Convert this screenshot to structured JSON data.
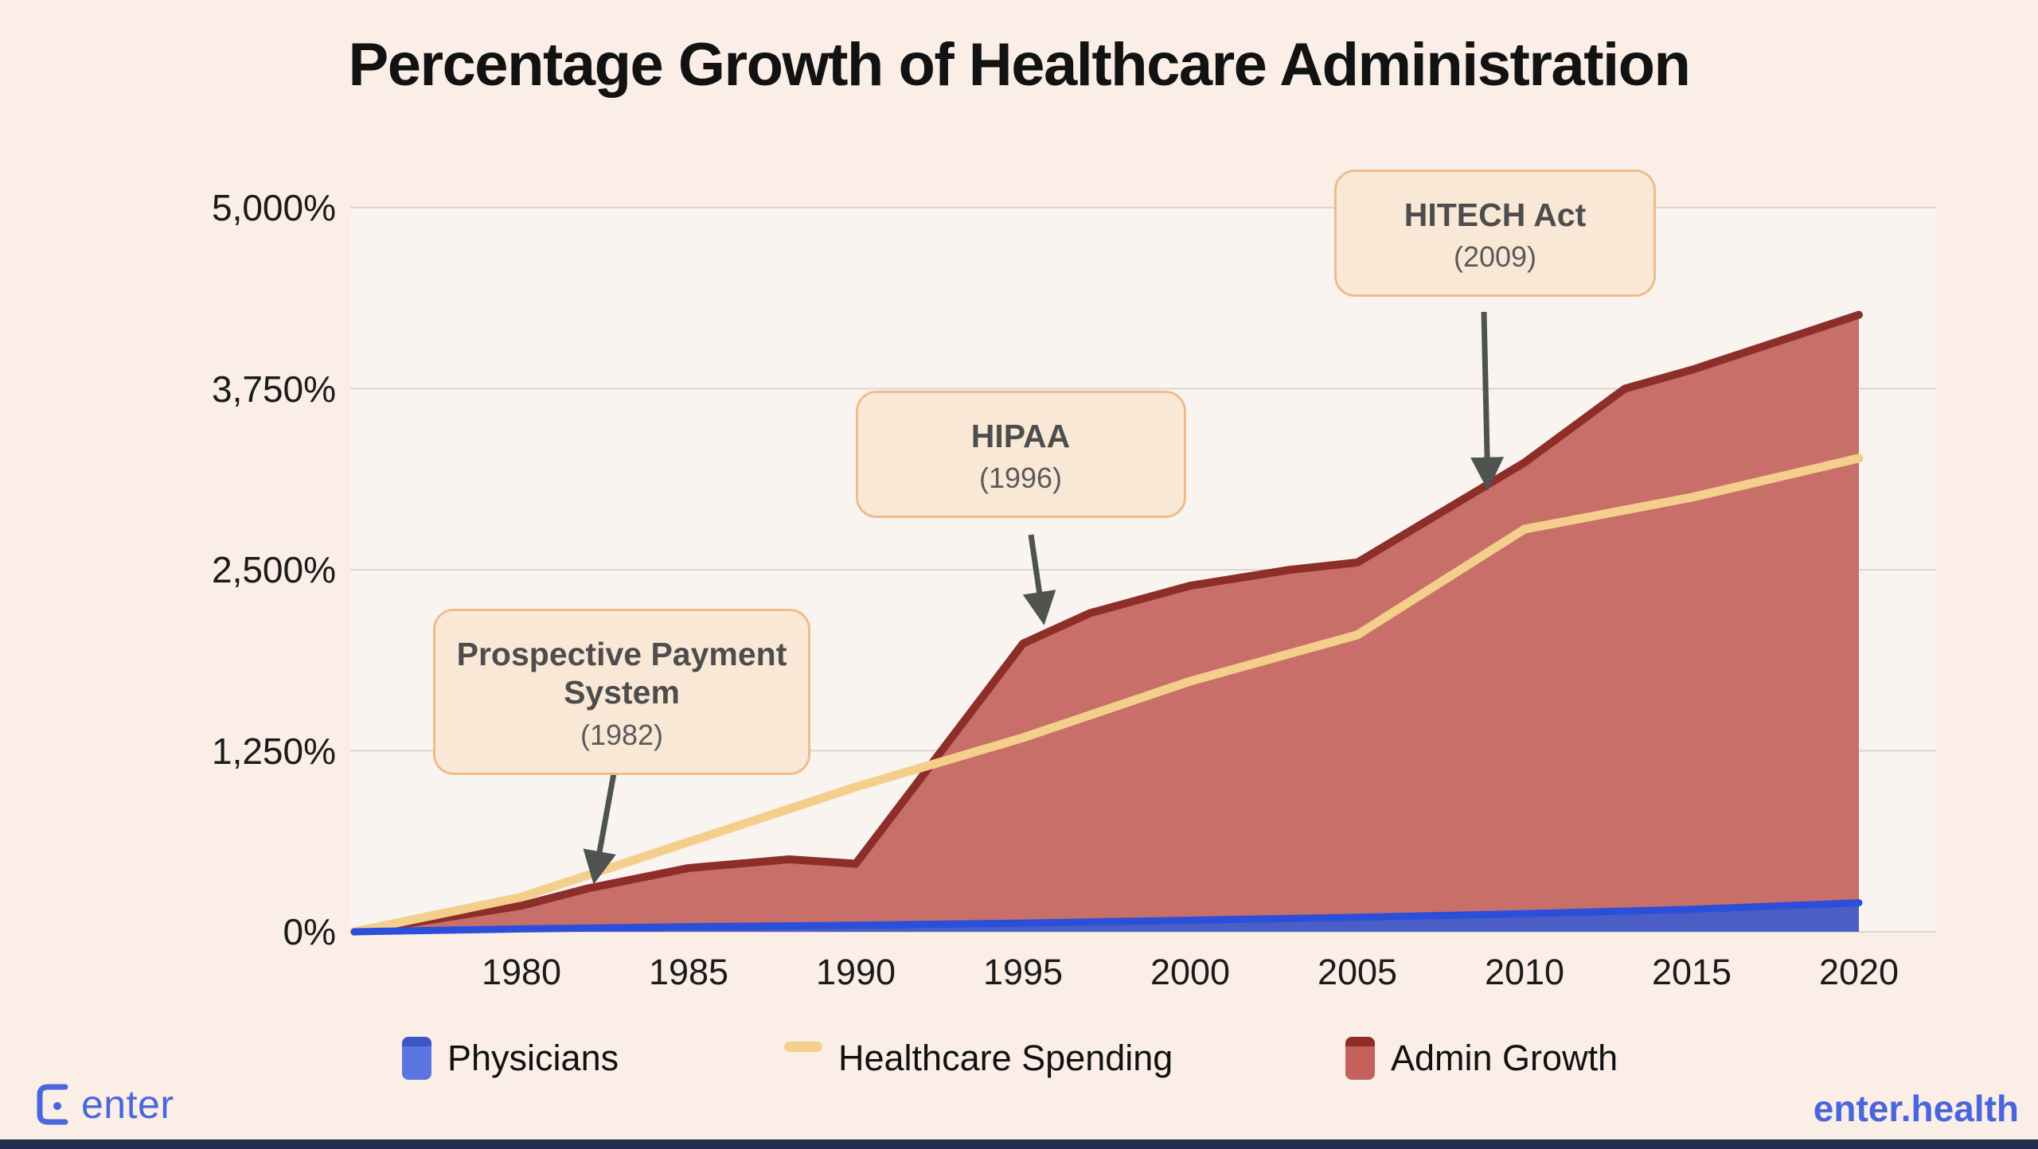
{
  "page": {
    "title": "Percentage Growth of Healthcare Administration",
    "background": "#faeee7",
    "footer": {
      "logo_text": "enter",
      "site_text": "enter.health",
      "brand_color": "#4a66dd"
    }
  },
  "chart_data": {
    "type": "area",
    "title": "Percentage Growth of Healthcare Administration",
    "xlabel": "",
    "ylabel": "",
    "x_range": [
      1975,
      2020
    ],
    "ylim": [
      0,
      5000
    ],
    "grid": true,
    "legend_position": "bottom",
    "x_ticks": [
      "1980",
      "1985",
      "1990",
      "1995",
      "2000",
      "2005",
      "2010",
      "2015",
      "2020"
    ],
    "y_ticks": [
      {
        "value": 5000,
        "label": "5,000%"
      },
      {
        "value": 3750,
        "label": "3,750%"
      },
      {
        "value": 2500,
        "label": "2,500%"
      },
      {
        "value": 1250,
        "label": "1,250%"
      },
      {
        "value": 0,
        "label": "0%"
      }
    ],
    "series": [
      {
        "name": "Admin Growth",
        "type": "area",
        "fill": "#c56762",
        "line": "#8e2e29",
        "points": [
          [
            1975,
            0
          ],
          [
            1980,
            180
          ],
          [
            1982,
            300
          ],
          [
            1985,
            440
          ],
          [
            1988,
            500
          ],
          [
            1990,
            470
          ],
          [
            1995,
            1990
          ],
          [
            1997,
            2200
          ],
          [
            2000,
            2390
          ],
          [
            2003,
            2500
          ],
          [
            2005,
            2550
          ],
          [
            2010,
            3240
          ],
          [
            2013,
            3750
          ],
          [
            2015,
            3880
          ],
          [
            2020,
            4260
          ]
        ]
      },
      {
        "name": "Healthcare Spending",
        "type": "line",
        "line": "#f3cf8b",
        "points": [
          [
            1975,
            0
          ],
          [
            1980,
            240
          ],
          [
            1985,
            620
          ],
          [
            1990,
            1000
          ],
          [
            1995,
            1340
          ],
          [
            2000,
            1730
          ],
          [
            2005,
            2050
          ],
          [
            2010,
            2780
          ],
          [
            2015,
            3000
          ],
          [
            2020,
            3270
          ]
        ]
      },
      {
        "name": "Physicians",
        "type": "area",
        "fill": "#4a5ec5",
        "line": "#2b4fd8",
        "points": [
          [
            1975,
            0
          ],
          [
            1980,
            20
          ],
          [
            1985,
            35
          ],
          [
            1990,
            45
          ],
          [
            1995,
            60
          ],
          [
            2000,
            80
          ],
          [
            2005,
            100
          ],
          [
            2010,
            125
          ],
          [
            2015,
            155
          ],
          [
            2020,
            200
          ]
        ]
      }
    ],
    "annotations": [
      {
        "label": "Prospective Payment System",
        "sublabel": "(1982)",
        "target_year": 1982.2,
        "target_value": 380
      },
      {
        "label": "HIPAA",
        "sublabel": "(1996)",
        "target_year": 1995.6,
        "target_value": 2170
      },
      {
        "label": "HITECH Act",
        "sublabel": "(2009)",
        "target_year": 2008.9,
        "target_value": 3100
      }
    ]
  },
  "legend": {
    "items": [
      {
        "label": "Physicians",
        "swatch": "square",
        "fill": "#5b76e0",
        "edge": "#3a57c6"
      },
      {
        "label": "Healthcare Spending",
        "swatch": "line",
        "fill": "#f3cf8b"
      },
      {
        "label": "Admin Growth",
        "swatch": "square",
        "fill": "#c4615c",
        "edge": "#8c2d28"
      }
    ]
  }
}
